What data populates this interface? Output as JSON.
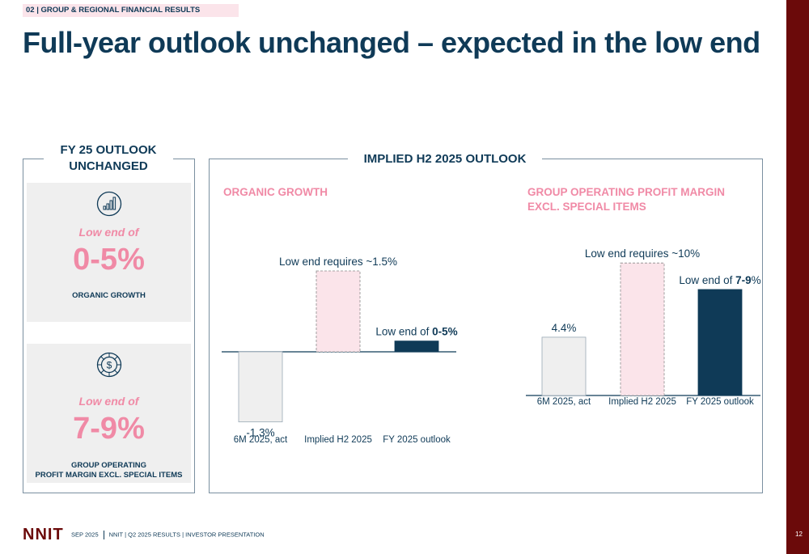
{
  "section_tag": "02 | GROUP & REGIONAL FINANCIAL RESULTS",
  "title": "Full-year outlook unchanged – expected in the low end",
  "left_panel": {
    "heading_line1": "FY 25 OUTLOOK",
    "heading_line2": "UNCHANGED",
    "kpis": [
      {
        "icon": "bar-chart-icon",
        "low_text": "Low end of",
        "value": "0-5%",
        "label_line1": "ORGANIC GROWTH",
        "label_line2": ""
      },
      {
        "icon": "dollar-coin-icon",
        "low_text": "Low end of",
        "value": "7-9%",
        "label_line1": "GROUP OPERATING",
        "label_line2": "PROFIT MARGIN EXCL. SPECIAL ITEMS"
      }
    ]
  },
  "right_panel": {
    "heading": "IMPLIED H2 2025 OUTLOOK",
    "chart1_title": "ORGANIC GROWTH",
    "chart2_title_line1": "GROUP OPERATING PROFIT MARGIN",
    "chart2_title_line2": "EXCL. SPECIAL ITEMS"
  },
  "colors": {
    "navy": "#0f3a57",
    "pink": "#f08aa6",
    "light_pink": "#fbe4ea",
    "grey": "#efefef",
    "maroon": "#6b0a0a"
  },
  "chart_data": [
    {
      "type": "bar",
      "title": "ORGANIC GROWTH",
      "categories": [
        "6M 2025, act",
        "Implied H2 2025",
        "FY 2025 outlook"
      ],
      "values": [
        -1.3,
        1.5,
        0.2
      ],
      "bar_styles": [
        "grey",
        "pink-dashed",
        "navy"
      ],
      "data_labels": [
        "-1.3%",
        "Low end requires ~1.5%",
        [
          "Low end of ",
          "0-5%",
          ""
        ]
      ],
      "ylim": [
        -1.5,
        1.8
      ]
    },
    {
      "type": "bar",
      "title": "GROUP OPERATING PROFIT MARGIN EXCL. SPECIAL ITEMS",
      "categories": [
        "6M 2025, act",
        "Implied H2 2025",
        "FY 2025 outlook"
      ],
      "values": [
        4.4,
        10,
        8
      ],
      "bar_styles": [
        "grey",
        "pink-dashed",
        "navy"
      ],
      "data_labels": [
        "4.4%",
        "Low end requires ~10%",
        [
          "Low end of ",
          "7-9",
          "%"
        ]
      ],
      "ylim": [
        0,
        10.5
      ]
    }
  ],
  "footer": {
    "logo": "NNIT",
    "date": "SEP 2025",
    "presentation": "NNIT | Q2 2025 RESULTS | INVESTOR PRESENTATION",
    "page": "12"
  }
}
